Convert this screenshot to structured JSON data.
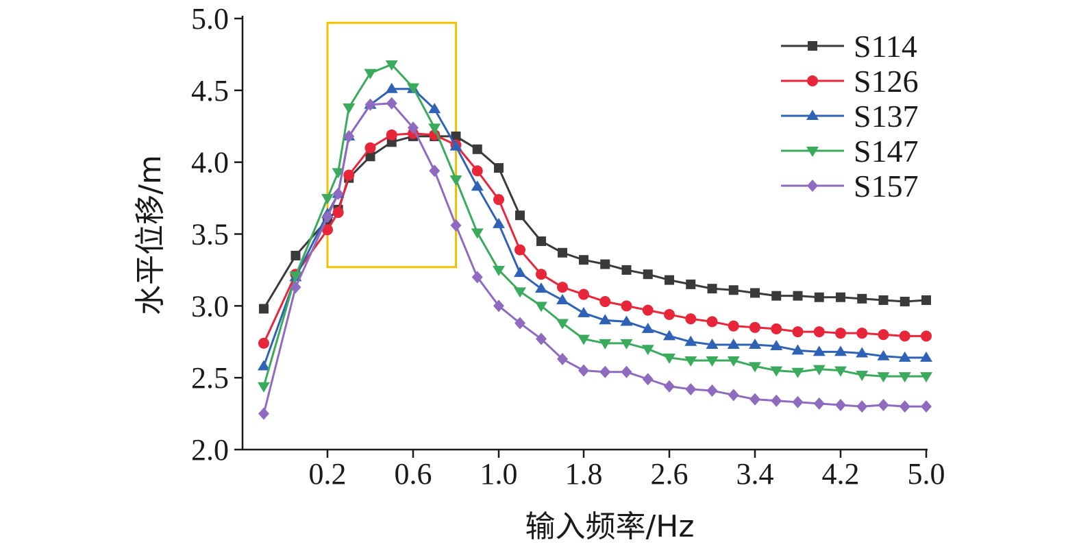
{
  "chart_data": {
    "type": "line",
    "xlabel": "输入频率/Hz",
    "ylabel": "水平位移/m",
    "x_tick_labels": [
      "0.2",
      "0.6",
      "1.0",
      "1.8",
      "2.6",
      "3.4",
      "4.2",
      "5.0"
    ],
    "y_ticks": [
      2.0,
      2.5,
      3.0,
      3.5,
      4.0,
      4.5,
      5.0
    ],
    "y_tick_labels": [
      "2.0",
      "2.5",
      "3.0",
      "3.5",
      "4.0",
      "4.5",
      "5.0"
    ],
    "ylim": [
      2.0,
      5.0
    ],
    "x": [
      "0.1",
      "0.15",
      "0.2",
      "0.25",
      "0.3",
      "0.4",
      "0.5",
      "0.6",
      "0.7",
      "0.8",
      "0.9",
      "1.0",
      "1.2",
      "1.4",
      "1.6",
      "1.8",
      "2.0",
      "2.2",
      "2.4",
      "2.6",
      "2.8",
      "3.0",
      "3.2",
      "3.4",
      "3.6",
      "3.8",
      "4.0",
      "4.2",
      "4.4",
      "4.6",
      "4.8",
      "5.0"
    ],
    "highlight_box": {
      "x_range": [
        "0.2",
        "0.8"
      ],
      "y_range": [
        3.27,
        4.97
      ],
      "color": "#f2c200"
    },
    "legend_position": "top-right",
    "series": [
      {
        "name": "S114",
        "color": "#3a3a3a",
        "marker": "square",
        "values": [
          2.98,
          3.35,
          3.6,
          3.67,
          3.89,
          4.04,
          4.14,
          4.18,
          4.18,
          4.18,
          4.09,
          3.96,
          3.63,
          3.45,
          3.37,
          3.32,
          3.29,
          3.25,
          3.22,
          3.18,
          3.15,
          3.12,
          3.11,
          3.09,
          3.07,
          3.07,
          3.06,
          3.06,
          3.05,
          3.04,
          3.03,
          3.04
        ]
      },
      {
        "name": "S126",
        "color": "#e8263a",
        "marker": "circle",
        "values": [
          2.74,
          3.22,
          3.53,
          3.65,
          3.91,
          4.1,
          4.19,
          4.2,
          4.19,
          4.12,
          3.94,
          3.74,
          3.39,
          3.22,
          3.13,
          3.08,
          3.03,
          3.0,
          2.97,
          2.94,
          2.91,
          2.89,
          2.86,
          2.85,
          2.84,
          2.82,
          2.82,
          2.81,
          2.81,
          2.8,
          2.79,
          2.79
        ]
      },
      {
        "name": "S137",
        "color": "#2f62b7",
        "marker": "triangle-up",
        "values": [
          2.58,
          3.2,
          3.64,
          3.78,
          4.18,
          4.4,
          4.51,
          4.51,
          4.37,
          4.11,
          3.83,
          3.57,
          3.23,
          3.12,
          3.04,
          2.95,
          2.9,
          2.89,
          2.84,
          2.79,
          2.75,
          2.73,
          2.73,
          2.73,
          2.72,
          2.69,
          2.68,
          2.68,
          2.67,
          2.65,
          2.64,
          2.64
        ]
      },
      {
        "name": "S147",
        "color": "#3aaa5c",
        "marker": "triangle-down",
        "values": [
          2.44,
          3.21,
          3.75,
          3.93,
          4.38,
          4.62,
          4.68,
          4.52,
          4.24,
          3.88,
          3.51,
          3.25,
          3.1,
          3.0,
          2.88,
          2.77,
          2.74,
          2.74,
          2.7,
          2.64,
          2.62,
          2.62,
          2.62,
          2.58,
          2.55,
          2.54,
          2.56,
          2.55,
          2.52,
          2.51,
          2.51,
          2.51
        ]
      },
      {
        "name": "S157",
        "color": "#8e6bbf",
        "marker": "diamond",
        "values": [
          2.25,
          3.13,
          3.62,
          3.78,
          4.18,
          4.4,
          4.41,
          4.24,
          3.94,
          3.56,
          3.2,
          3.0,
          2.88,
          2.77,
          2.63,
          2.55,
          2.54,
          2.54,
          2.49,
          2.44,
          2.42,
          2.41,
          2.38,
          2.35,
          2.34,
          2.33,
          2.32,
          2.31,
          2.3,
          2.31,
          2.3,
          2.3
        ]
      }
    ]
  }
}
